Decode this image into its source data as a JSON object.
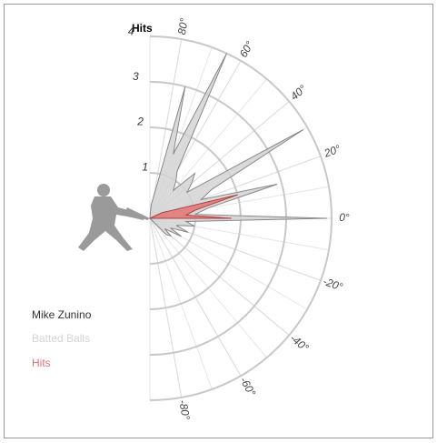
{
  "chart_data": {
    "type": "radial",
    "legend_title": "Mike Zunino",
    "r_label": "Hits",
    "rlim": [
      0,
      4
    ],
    "rticks": [
      1,
      2,
      3,
      4
    ],
    "xlim": [
      -90,
      90
    ],
    "xticks": [
      {
        "value": 80,
        "label": "80°"
      },
      {
        "value": 60,
        "label": "60°"
      },
      {
        "value": 40,
        "label": "40°"
      },
      {
        "value": 20,
        "label": "20°"
      },
      {
        "value": 0,
        "label": "0°"
      },
      {
        "value": -20,
        "label": "-20°"
      },
      {
        "value": -40,
        "label": "-40°"
      },
      {
        "value": -60,
        "label": "-60°"
      },
      {
        "value": -80,
        "label": "-80°"
      }
    ],
    "x": [
      -45,
      -40,
      -35,
      -30,
      -25,
      -20,
      -15,
      -10,
      -5,
      0,
      5,
      10,
      15,
      20,
      25,
      30,
      35,
      40,
      45,
      50,
      55,
      60,
      65,
      70,
      75,
      80,
      85,
      90
    ],
    "series": [
      {
        "name": "Batted Balls",
        "color": "#d4d4d4",
        "values": [
          0.5,
          0.6,
          0.4,
          0.8,
          0.5,
          0.9,
          0.6,
          1,
          0.8,
          3.9,
          1,
          1.3,
          2.9,
          1.2,
          1.5,
          3.9,
          1,
          1.2,
          1.4,
          0.8,
          1,
          1.2,
          4,
          1.5,
          3,
          0.5,
          0.3,
          0
        ]
      },
      {
        "name": "Hits",
        "color": "#e07474",
        "values": [
          0,
          0,
          0,
          0,
          0,
          0,
          0,
          0,
          0,
          1.8,
          0.8,
          1,
          2,
          0.5,
          0.3,
          0,
          0,
          0,
          0,
          0,
          0,
          0,
          0,
          0,
          0,
          0,
          0,
          0
        ]
      }
    ]
  }
}
